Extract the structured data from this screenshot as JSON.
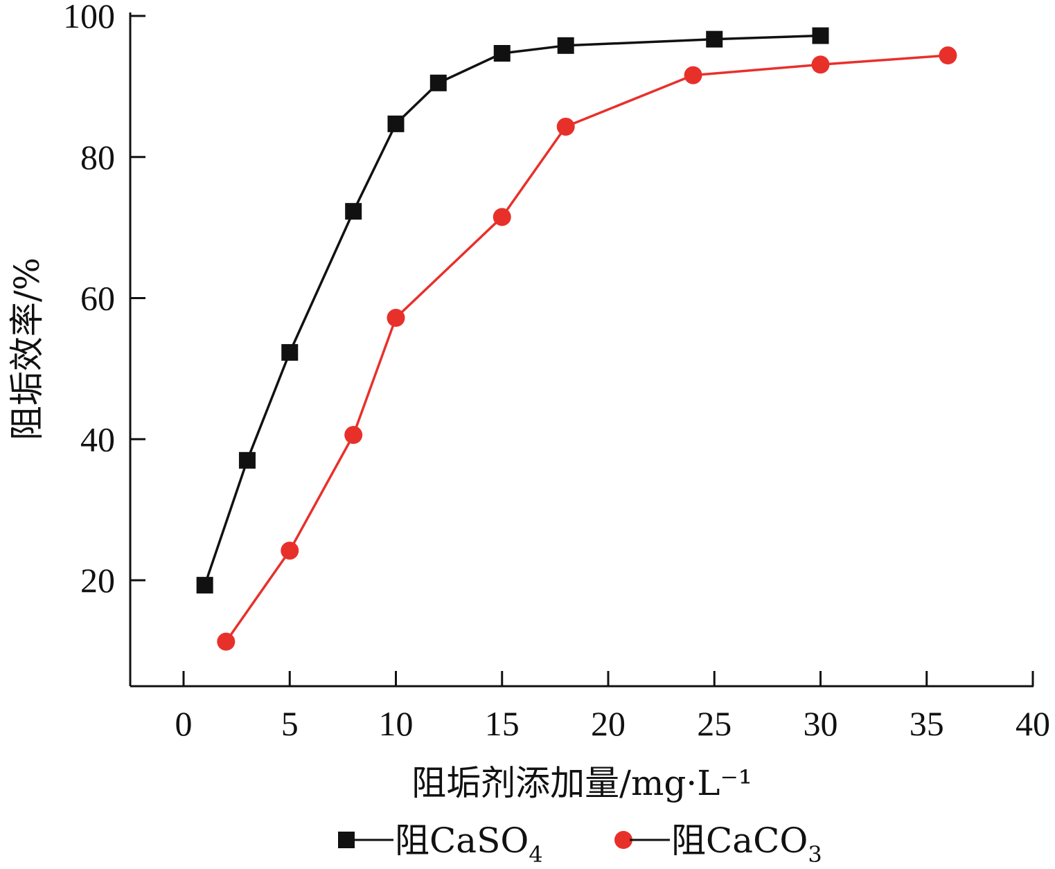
{
  "chart_data": {
    "type": "line",
    "xlabel": "阻垢剂添加量/mg·L⁻¹",
    "ylabel": "阻垢效率/%",
    "xlim": [
      -2.5,
      40
    ],
    "ylim": [
      5,
      100
    ],
    "xticks": [
      0,
      5,
      10,
      15,
      20,
      25,
      30,
      35,
      40
    ],
    "yticks": [
      20,
      40,
      60,
      80,
      100
    ],
    "xtick_labels": [
      "0",
      "5",
      "10",
      "15",
      "20",
      "25",
      "30",
      "35",
      "40"
    ],
    "ytick_labels": [
      "20",
      "40",
      "60",
      "80",
      "100"
    ],
    "grid": false,
    "legend_position": "bottom",
    "series": [
      {
        "name": "阻CaSO4",
        "name_main": "阻CaSO",
        "name_sub": "4",
        "marker": "square",
        "color": "#111111",
        "x": [
          1,
          3,
          5,
          8,
          10,
          12,
          15,
          18,
          25,
          30
        ],
        "y": [
          19.3,
          37.0,
          52.3,
          72.3,
          84.7,
          90.5,
          94.7,
          95.8,
          96.7,
          97.2
        ]
      },
      {
        "name": "阻CaCO3",
        "name_main": "阻CaCO",
        "name_sub": "3",
        "marker": "circle",
        "color": "#e8302b",
        "x": [
          2,
          5,
          8,
          10,
          15,
          18,
          24,
          30,
          36
        ],
        "y": [
          11.3,
          24.2,
          40.6,
          57.2,
          71.5,
          84.3,
          91.6,
          93.1,
          94.4
        ]
      }
    ]
  }
}
